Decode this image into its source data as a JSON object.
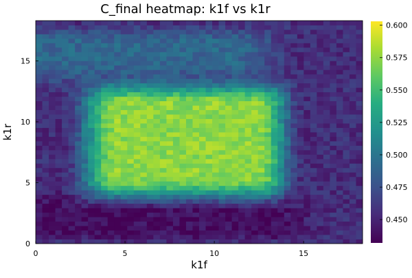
{
  "chart_data": {
    "type": "heatmap",
    "title": "C_final heatmap: k1f vs k1r",
    "xlabel": "k1f",
    "ylabel": "k1r",
    "xlim": [
      0,
      18.3
    ],
    "ylim": [
      0,
      18.3
    ],
    "x_ticks": [
      0,
      5,
      10,
      15
    ],
    "y_ticks": [
      0,
      5,
      10,
      15
    ],
    "x_tick_labels": [
      "0",
      "5",
      "10",
      "15"
    ],
    "y_tick_labels": [
      "0",
      "5",
      "10",
      "15"
    ],
    "nx": 50,
    "ny": 50,
    "colorbar": {
      "min": 0.432,
      "max": 0.603,
      "ticks": [
        0.45,
        0.475,
        0.5,
        0.525,
        0.55,
        0.575,
        0.6
      ],
      "tick_labels": [
        "0.450",
        "0.475",
        "0.500",
        "0.525",
        "0.550",
        "0.575",
        "0.600"
      ]
    },
    "colormap": "viridis",
    "field_model": {
      "base": 0.455,
      "core": {
        "x_range": [
          4.5,
          13.5
        ],
        "y_range": [
          5.5,
          11.5
        ],
        "peak": 0.595
      },
      "upper_left_band": {
        "level": 0.49
      },
      "lower_valley": {
        "level": 0.438
      },
      "noise": 0.012
    }
  }
}
